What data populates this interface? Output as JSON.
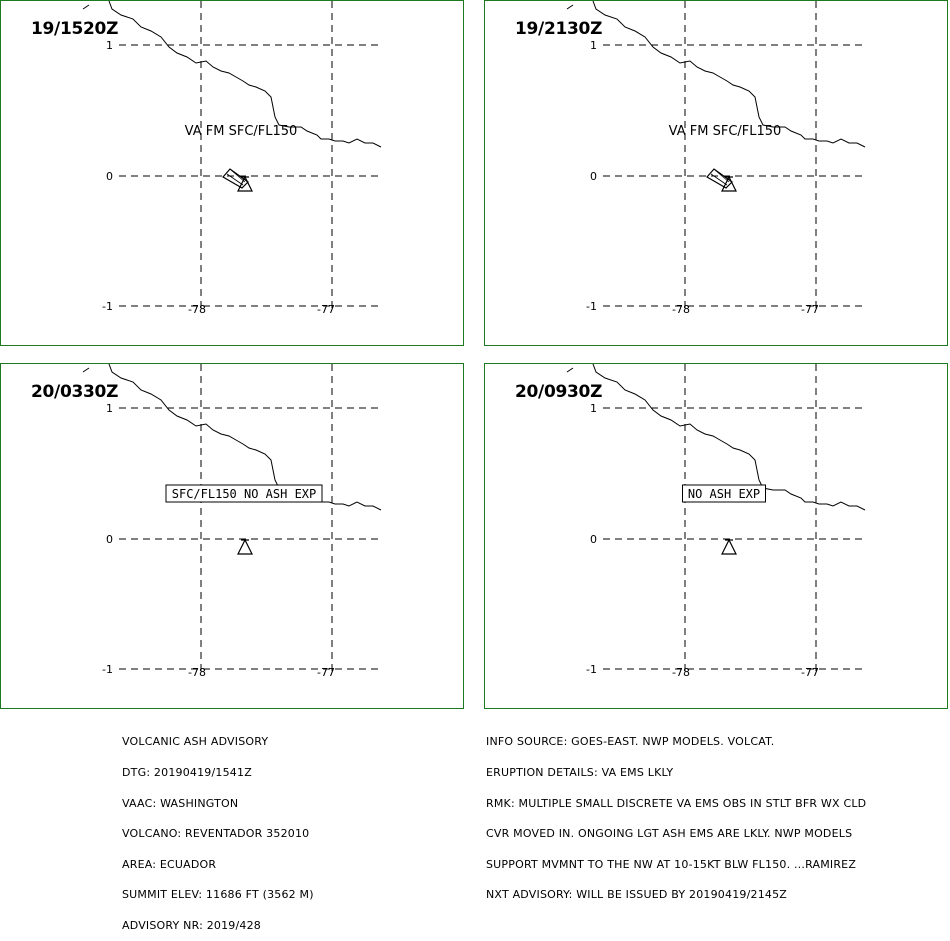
{
  "map": {
    "lat_labels": [
      "1",
      "0",
      "-1"
    ],
    "lon_labels": [
      "-78",
      "-77"
    ],
    "border_color": "#1f7a1f"
  },
  "panels": [
    {
      "time": "19/1520Z",
      "text": "VA FM SFC/FL150",
      "style": "plain",
      "ash_arrow": true
    },
    {
      "time": "19/2130Z",
      "text": "VA FM SFC/FL150",
      "style": "plain",
      "ash_arrow": true
    },
    {
      "time": "20/0330Z",
      "text": "SFC/FL150 NO ASH EXP",
      "style": "boxed",
      "ash_arrow": false
    },
    {
      "time": "20/0930Z",
      "text": "NO ASH EXP",
      "style": "boxed",
      "ash_arrow": false
    }
  ],
  "advisory_left": [
    "VOLCANIC ASH ADVISORY",
    "DTG: 20190419/1541Z",
    "VAAC: WASHINGTON",
    "VOLCANO: REVENTADOR 352010",
    "AREA: ECUADOR",
    "SUMMIT ELEV: 11686 FT (3562 M)",
    "ADVISORY NR: 2019/428"
  ],
  "advisory_right": [
    "INFO SOURCE: GOES-EAST. NWP MODELS. VOLCAT.",
    "ERUPTION DETAILS: VA EMS LKLY",
    "RMK: MULTIPLE SMALL DISCRETE VA EMS OBS IN STLT BFR WX CLD",
    "CVR MOVED IN. ONGOING LGT ASH EMS ARE LKLY. NWP MODELS",
    "SUPPORT MVMNT TO THE NW AT 10-15KT BLW FL150. ...RAMIREZ",
    "NXT ADVISORY: WILL BE ISSUED BY 20190419/2145Z"
  ]
}
